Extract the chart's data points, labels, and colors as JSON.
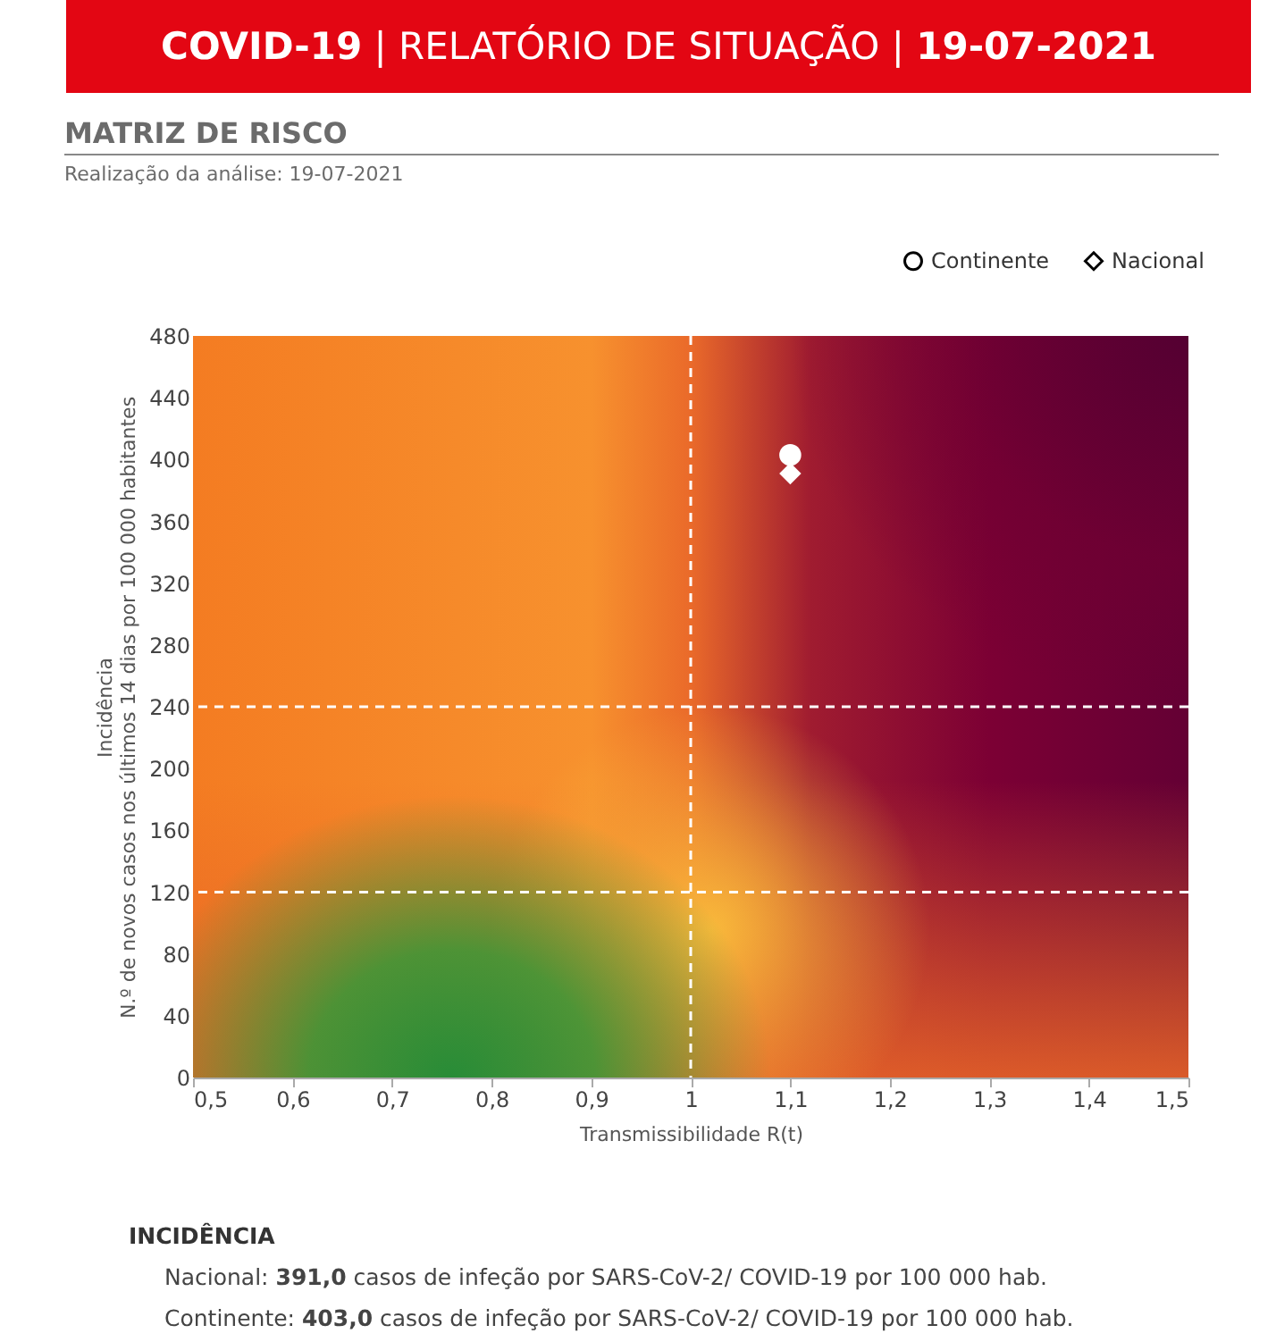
{
  "chart_data": {
    "type": "scatter",
    "title": "COVID-19 | RELATÓRIO DE SITUAÇÃO | 19-07-2021",
    "subtitle": "MATRIZ DE RISCO",
    "xlabel": "Transmissibilidade R(t)",
    "ylabel": "Incidência\nN.º de novos casos nos últimos 14 dias por 100 000 habitantes",
    "series": [
      {
        "name": "Continente",
        "color": "#ffffff",
        "marker": "circle",
        "x": [
          1.1
        ],
        "values": [
          403
        ]
      },
      {
        "name": "Nacional",
        "color": "#ffffff",
        "marker": "diamond",
        "x": [
          1.1
        ],
        "values": [
          391
        ]
      }
    ],
    "xlim": [
      0.5,
      1.5
    ],
    "xticks": [
      {
        "value": 0.5,
        "label": "0,5"
      },
      {
        "value": 0.6,
        "label": "0,6"
      },
      {
        "value": 0.7,
        "label": "0,7"
      },
      {
        "value": 0.8,
        "label": "0,8"
      },
      {
        "value": 0.9,
        "label": "0,9"
      },
      1,
      {
        "value": 1.1,
        "label": "1,1"
      },
      {
        "value": 1.2,
        "label": "1,2"
      },
      {
        "value": 1.3,
        "label": "1,3"
      },
      {
        "value": 1.4,
        "label": "1,4"
      },
      {
        "value": 1.5,
        "label": "1,5"
      }
    ],
    "ylim": [
      0,
      480
    ],
    "yticks": [
      0,
      40,
      80,
      120,
      160,
      200,
      240,
      280,
      320,
      360,
      400,
      440,
      480
    ],
    "ref_lines": [
      {
        "axis": "x",
        "value": 1,
        "color": "#ffffff",
        "line_style": "dashed"
      },
      {
        "axis": "y",
        "value": 120,
        "color": "#ffffff",
        "line_style": "dashed"
      },
      {
        "axis": "y",
        "value": 240,
        "color": "#ffffff",
        "line_style": "dashed"
      }
    ],
    "legend": "top right",
    "grid": false,
    "annotations": [
      "Realização da análise: 19-07-2021",
      "INCIDÊNCIA",
      "Nacional: 391,0 casos de infeção por SARS-CoV-2/ COVID-19 por 100 000 hab.",
      "Continente: 403,0 casos de infeção por SARS-CoV-2/ COVID-19 por 100 000 hab."
    ]
  }
}
